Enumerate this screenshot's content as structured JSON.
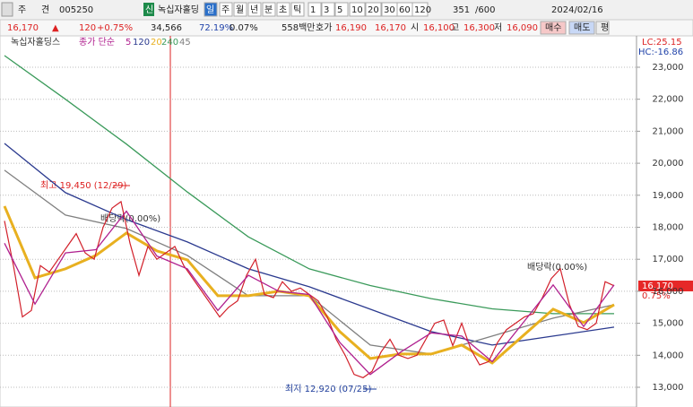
{
  "toolbar": {
    "items": [
      "주",
      "견",
      "005250",
      "신",
      "녹십자홀딩",
      "일",
      "주",
      "월",
      "년",
      "분",
      "초",
      "틱",
      "1",
      "3",
      "5",
      "10",
      "20",
      "30",
      "60",
      "120",
      "351",
      "/600",
      "2024/02/16"
    ]
  },
  "info": {
    "items": [
      "16,170",
      "▲",
      "120",
      "+0.75%",
      "34,566",
      "72.19%",
      "0.07%",
      "558백만",
      "호가",
      "16,190",
      "16,170",
      "시",
      "16,100",
      "고",
      "16,300",
      "저",
      "16,090",
      "매수",
      "매도",
      "평"
    ]
  },
  "chart_data": {
    "type": "line",
    "ma_label": "종가 단순",
    "lc": "LC:25.15",
    "hc": "HC:-16.86",
    "last_label": "16,170",
    "last_change": "0.75%",
    "annotations": [
      "최고 19,450 (12/29)",
      "배당락(0.00%)",
      "배당락(0.00%)",
      "최저 12,920 (07/25)"
    ],
    "ylim": [
      12384,
      23980
    ],
    "yticks": [
      {
        "value": 13000,
        "label": "13,000"
      },
      {
        "value": 14000,
        "label": "14,000"
      },
      {
        "value": 15000,
        "label": "15,000"
      },
      {
        "value": 16000,
        "label": "16,000"
      },
      {
        "value": 17000,
        "label": "17,000"
      },
      {
        "value": 18000,
        "label": "18,000"
      },
      {
        "value": 19000,
        "label": "19,000"
      },
      {
        "value": 20000,
        "label": "20,000"
      },
      {
        "value": 21000,
        "label": "21,000"
      },
      {
        "value": 22000,
        "label": "22,000"
      },
      {
        "value": 23000,
        "label": "23,000"
      }
    ],
    "grid": true,
    "series": [
      {
        "name": "녹십자홀딩스",
        "color": "#d2202a",
        "values": [
          18200,
          16800,
          15200,
          15400,
          16800,
          16600,
          17000,
          17400,
          17800,
          17200,
          17000,
          18000,
          18600,
          18800,
          17500,
          16500,
          17400,
          17000,
          17200,
          17400,
          16800,
          16400,
          16000,
          15600,
          15200,
          15500,
          15700,
          16500,
          17000,
          15900,
          15800,
          16300,
          16000,
          16100,
          15900,
          15700,
          15200,
          14500,
          14000,
          13400,
          13300,
          13500,
          14100,
          14500,
          14000,
          13900,
          14000,
          14500,
          15000,
          15100,
          14300,
          15000,
          14200,
          13700,
          13800,
          14400,
          14800,
          15000,
          15200,
          15300,
          15800,
          16400,
          16700,
          15600,
          14900,
          14800,
          15000,
          16300,
          16170
        ]
      },
      {
        "name": "5",
        "color": "#b0208f",
        "values": [
          17500,
          15600,
          17200,
          17300,
          18500,
          17100,
          16700,
          15400,
          16500,
          16000,
          15900,
          14400,
          13400,
          14100,
          14700,
          14600,
          13800,
          15000,
          16200,
          14900,
          16200
        ]
      },
      {
        "name": "120",
        "color": "#2b3a8f",
        "values": [
          20620,
          19080,
          18240,
          17540,
          16700,
          16140,
          15440,
          14740,
          14320,
          14600,
          14880
        ]
      },
      {
        "name": "20",
        "color": "#e8b020",
        "values": [
          18660,
          16420,
          16700,
          17120,
          17820,
          17260,
          16980,
          15860,
          15860,
          16000,
          15860,
          14740,
          13900,
          14040,
          14040,
          14320,
          13760,
          14600,
          15440,
          15020,
          15580
        ]
      },
      {
        "name": "240",
        "color": "#3a9a5a",
        "values": [
          23364,
          22000,
          20600,
          19100,
          17700,
          16700,
          16180,
          15770,
          15450,
          15300,
          15300
        ]
      },
      {
        "name": "45",
        "color": "#808080",
        "values": [
          19780,
          18380,
          17960,
          17120,
          15860,
          15860,
          14320,
          14040,
          14600,
          15160,
          15580
        ]
      }
    ]
  }
}
